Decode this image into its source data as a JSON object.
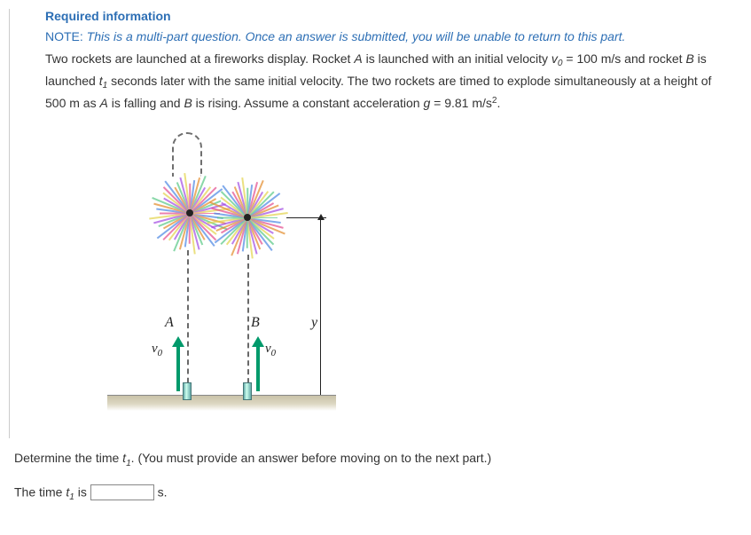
{
  "header": {
    "required_label": "Required information",
    "note_prefix": "NOTE:",
    "note_body": "This is a multi-part question. Once an answer is submitted, you will be unable to return to this part."
  },
  "problem": {
    "text_1a": "Two rockets are launched at a fireworks display. Rocket ",
    "rocketA": "A",
    "text_1b": " is launched with an initial velocity ",
    "v0_sym": "v",
    "v0_sub": "0",
    "text_1c": " = 100 m/s and rocket ",
    "rocketB": "B",
    "text_1d": " is launched ",
    "t1_sym": "t",
    "t1_sub": "1",
    "text_1e": " seconds later with the same initial velocity. The two rockets are timed to explode simultaneously at a height of 500 m as ",
    "text_1f": " is falling and ",
    "text_1g": " is rising. Assume a constant acceleration ",
    "g_sym": "g",
    "text_1h": " = 9.81 m/s",
    "sq": "2",
    "period": "."
  },
  "figure": {
    "labelA": "A",
    "labelB": "B",
    "labely": "y",
    "v0_html": "v",
    "v0_sub": "0",
    "fireworkA": {
      "halo_color": "#f3a1c8",
      "colors": [
        "#e24a8b",
        "#4a86e2",
        "#e28a2a",
        "#57c785",
        "#a14ae2",
        "#e2d34a"
      ]
    },
    "fireworkB": {
      "halo_color": "#a8e2b8",
      "colors": [
        "#57c785",
        "#4a86e2",
        "#e24a8b",
        "#e28a2a",
        "#a14ae2",
        "#e2d34a"
      ]
    },
    "ray_count": 48
  },
  "prompt": {
    "line_a": "Determine the time ",
    "line_b": ". (You must provide an answer before moving on to the next part.)",
    "ans_a": "The time ",
    "ans_b": " is",
    "unit": "s."
  }
}
